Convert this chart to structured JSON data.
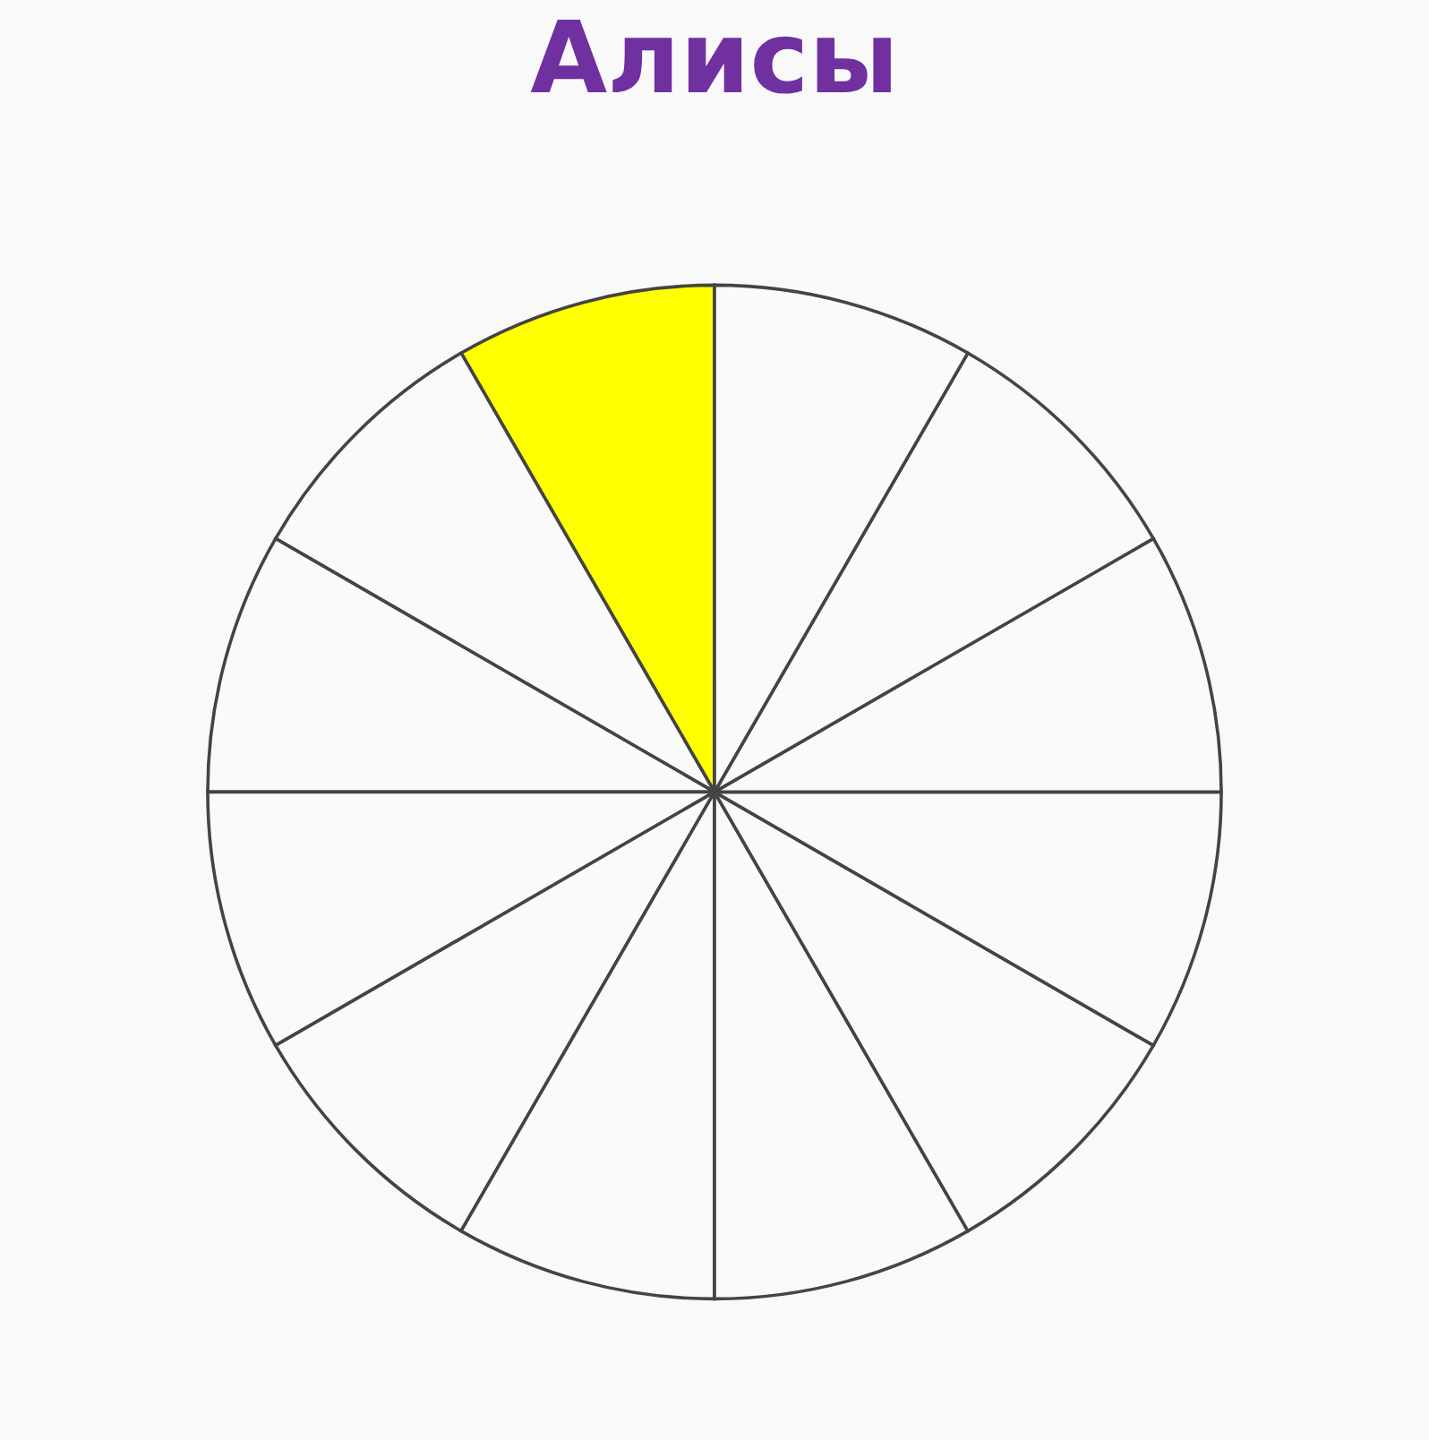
{
  "chart_data": {
    "type": "pie",
    "title": "Алисы",
    "categories": [
      null,
      null,
      null,
      null,
      null,
      null,
      null,
      null,
      null,
      null,
      null,
      null
    ],
    "values": [
      8.3333,
      8.3333,
      8.3333,
      8.3333,
      8.3333,
      8.3333,
      8.3333,
      8.3333,
      8.3333,
      8.3333,
      8.3333,
      8.3333
    ],
    "colors": [
      "#ffff00",
      "#fafafa",
      "#fafafa",
      "#fafafa",
      "#fafafa",
      "#fafafa",
      "#fafafa",
      "#fafafa",
      "#fafafa",
      "#fafafa",
      "#fafafa",
      "#fafafa"
    ]
  }
}
